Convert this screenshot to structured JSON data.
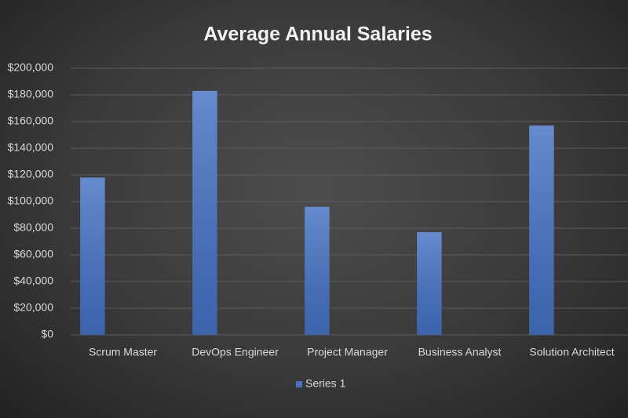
{
  "chart_data": {
    "type": "bar",
    "title": "Average Annual Salaries",
    "categories": [
      "Scrum Master",
      "DevOps Engineer",
      "Project Manager",
      "Business Analyst",
      "Solution Architect"
    ],
    "series": [
      {
        "name": "Series 1",
        "color": "#4472c4",
        "values": [
          118000,
          183000,
          96000,
          77000,
          157000
        ]
      }
    ],
    "ylim": [
      0,
      200000
    ],
    "yticks": [
      {
        "value": 0,
        "label": "$0"
      },
      {
        "value": 20000,
        "label": "$20,000"
      },
      {
        "value": 40000,
        "label": "$40,000"
      },
      {
        "value": 60000,
        "label": "$60,000"
      },
      {
        "value": 80000,
        "label": "$80,000"
      },
      {
        "value": 100000,
        "label": "$100,000"
      },
      {
        "value": 120000,
        "label": "$120,000"
      },
      {
        "value": 140000,
        "label": "$140,000"
      },
      {
        "value": 160000,
        "label": "$160,000"
      },
      {
        "value": 180000,
        "label": "$180,000"
      },
      {
        "value": 200000,
        "label": "$200,000"
      }
    ],
    "grid": true,
    "legend": "bottom"
  }
}
